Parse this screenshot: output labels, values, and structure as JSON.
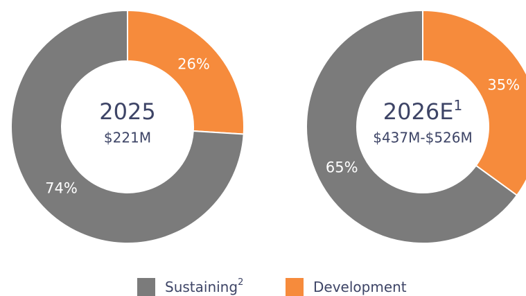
{
  "chart_data": [
    {
      "type": "pie",
      "title": "2025",
      "subtitle": "$221M",
      "categories": [
        "Development",
        "Sustaining"
      ],
      "values": [
        26,
        74
      ],
      "value_labels": [
        "26%",
        "74%"
      ],
      "colors": [
        "#f68b3c",
        "#7b7b7b"
      ]
    },
    {
      "type": "pie",
      "title": "2026E",
      "title_superscript": "1",
      "subtitle": "$437M-$526M",
      "categories": [
        "Development",
        "Sustaining"
      ],
      "values": [
        35,
        65
      ],
      "value_labels": [
        "35%",
        "65%"
      ],
      "colors": [
        "#f68b3c",
        "#7b7b7b"
      ]
    }
  ],
  "legend": [
    {
      "name": "Sustaining",
      "superscript": "2",
      "color": "#7b7b7b"
    },
    {
      "name": "Development",
      "color": "#f68b3c"
    }
  ]
}
